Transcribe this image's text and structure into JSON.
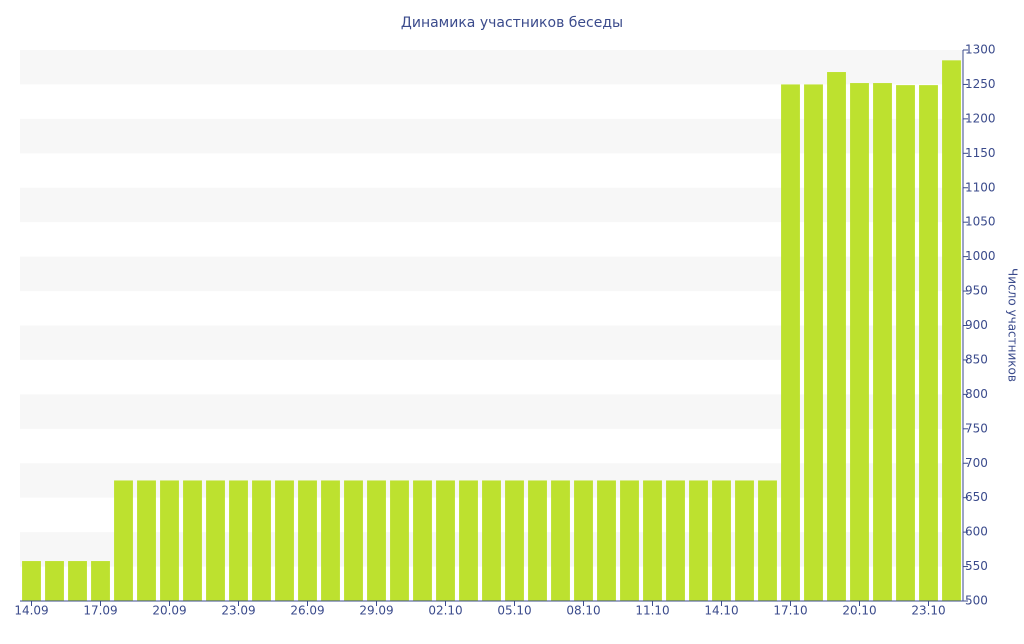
{
  "chart_data": {
    "type": "bar",
    "title": "Динамика участников беседы",
    "y_label": "Число участников",
    "categories": [
      "14.09",
      null,
      null,
      "17.09",
      null,
      null,
      "20.09",
      null,
      null,
      "23.09",
      null,
      null,
      "26.09",
      null,
      null,
      "29.09",
      null,
      null,
      "02.10",
      null,
      null,
      "05.10",
      null,
      null,
      "08.10",
      null,
      null,
      "11.10",
      null,
      null,
      "14.10",
      null,
      null,
      "17.10",
      null,
      null,
      "20.10",
      null,
      null,
      "23.10",
      null
    ],
    "values": [
      558,
      558,
      558,
      558,
      675,
      675,
      675,
      675,
      675,
      675,
      675,
      675,
      675,
      675,
      675,
      675,
      675,
      675,
      675,
      675,
      675,
      675,
      675,
      675,
      675,
      675,
      675,
      675,
      675,
      675,
      675,
      675,
      675,
      1250,
      1250,
      1268,
      1252,
      1252,
      1249,
      1249,
      1285
    ],
    "color": "#bde12f",
    "ylim": [
      500,
      1300
    ],
    "yticks": [
      500,
      550,
      600,
      650,
      700,
      750,
      800,
      850,
      900,
      950,
      1000,
      1050,
      1100,
      1150,
      1200,
      1250,
      1300
    ],
    "y_axis_side": "right",
    "grid": true
  }
}
